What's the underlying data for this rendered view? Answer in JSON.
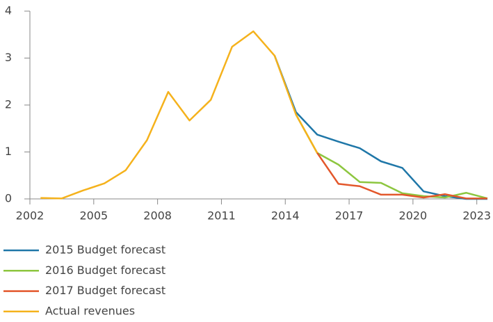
{
  "chart_data": {
    "type": "line",
    "x": [
      2002.5,
      2003.5,
      2004.5,
      2005.5,
      2006.5,
      2007.5,
      2008.5,
      2009.5,
      2010.5,
      2011.5,
      2012.5,
      2013.5,
      2014.5,
      2015.5,
      2016.5,
      2017.5,
      2018.5,
      2019.5,
      2020.5,
      2021.5,
      2022.5,
      2023.5
    ],
    "series": [
      {
        "name": "2015 Budget forecast",
        "color": "#1f77a8",
        "values": [
          null,
          null,
          null,
          null,
          null,
          null,
          null,
          null,
          null,
          null,
          null,
          3.05,
          1.85,
          1.37,
          1.22,
          1.08,
          0.8,
          0.66,
          0.16,
          0.06,
          0.0,
          0.0
        ]
      },
      {
        "name": "2016 Budget forecast",
        "color": "#8dc63f",
        "values": [
          null,
          null,
          null,
          null,
          null,
          null,
          null,
          null,
          null,
          null,
          null,
          null,
          1.8,
          0.98,
          0.73,
          0.36,
          0.34,
          0.12,
          0.06,
          0.03,
          0.13,
          0.01
        ]
      },
      {
        "name": "2017 Budget forecast",
        "color": "#e3572b",
        "values": [
          null,
          null,
          null,
          null,
          null,
          null,
          null,
          null,
          null,
          null,
          null,
          null,
          null,
          0.98,
          0.32,
          0.27,
          0.09,
          0.09,
          0.03,
          0.1,
          0.01,
          0.01
        ]
      },
      {
        "name": "Actual revenues",
        "color": "#f5b21c",
        "values": [
          0.02,
          0.01,
          0.18,
          0.33,
          0.61,
          1.25,
          2.28,
          1.67,
          2.11,
          3.24,
          3.57,
          3.05,
          1.8,
          0.98,
          null,
          null,
          null,
          null,
          null,
          null,
          null,
          null
        ]
      }
    ],
    "xlim": [
      2002,
      2023.5
    ],
    "xticks": [
      2002,
      2005,
      2008,
      2011,
      2014,
      2017,
      2020,
      2023
    ],
    "ylim": [
      0,
      4
    ],
    "yticks": [
      0,
      1,
      2,
      3,
      4
    ]
  }
}
